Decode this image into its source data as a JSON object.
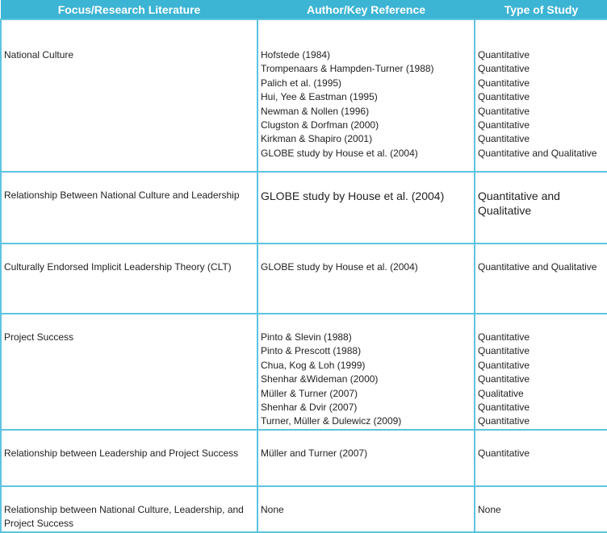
{
  "table": {
    "header": [
      "Focus/Research Literature",
      "Author/Key Reference",
      "Type of Study"
    ],
    "rows": [
      [
        [
          "National Culture"
        ],
        [
          "Hofstede (1984)",
          "Trompenaars & Hampden-Turner (1988)",
          "Palich et al. (1995)",
          "Hui, Yee & Eastman (1995)",
          "Newman & Nollen (1996)",
          "Clugston & Dorfman (2000)",
          "Kirkman & Shapiro (2001)",
          "GLOBE study by House et al. (2004)"
        ],
        [
          "Quantitative",
          "Quantitative",
          "Quantitative",
          "Quantitative",
          "Quantitative",
          "Quantitative",
          "Quantitative",
          "Quantitative and Qualitative"
        ]
      ],
      [
        [
          "Relationship Between National Culture and Leadership"
        ],
        [
          "GLOBE study by House et al. (2004)"
        ],
        [
          "Quantitative and Qualitative"
        ]
      ],
      [
        [
          "Culturally Endorsed Implicit Leadership Theory (CLT)"
        ],
        [
          "GLOBE study by House et al. (2004)"
        ],
        [
          "Quantitative and Qualitative"
        ]
      ],
      [
        [
          "Project Success"
        ],
        [
          "Pinto & Slevin  (1988)",
          "Pinto & Prescott (1988)",
          "Chua, Kog & Loh (1999)",
          "Shenhar &Wideman (2000)",
          "Müller & Turner (2007)",
          "Shenhar & Dvir (2007)",
          "Turner, Müller & Dulewicz (2009)"
        ],
        [
          "Quantitative",
          "Quantitative",
          "Quantitative",
          "Quantitative",
          "Qualitative",
          "Quantitative",
          "Quantitative"
        ]
      ],
      [
        [
          "Relationship between Leadership and Project Success"
        ],
        [
          "Müller and Turner (2007)"
        ],
        [
          "Quantitative"
        ]
      ],
      [
        [
          "Relationship between National Culture, Leadership, and Project Success"
        ],
        [
          "None"
        ],
        [
          "None"
        ]
      ]
    ]
  }
}
